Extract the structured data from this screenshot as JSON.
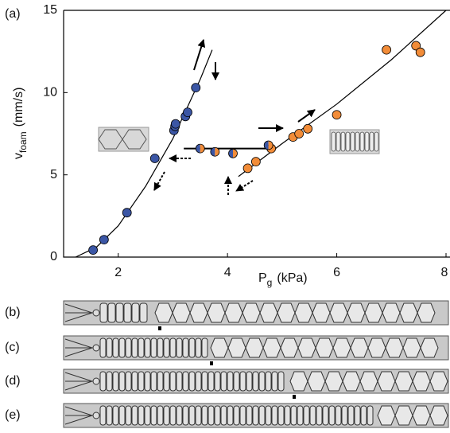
{
  "chart_data": {
    "type": "scatter",
    "panel_label": "(a)",
    "x_label": {
      "main": "P",
      "sub": "g",
      "unit": "(kPa)"
    },
    "y_label": {
      "main": "v",
      "sub": "foam",
      "unit": "(mm/s)"
    },
    "xlim": [
      1,
      8
    ],
    "ylim": [
      0,
      15
    ],
    "xticks": [
      2,
      4,
      6,
      8
    ],
    "yticks": [
      0,
      5,
      10,
      15
    ],
    "series": [
      {
        "color": "#3b56a5",
        "x": [
          1.54,
          1.74,
          2.16,
          2.67,
          3.02,
          3.04,
          3.05,
          3.23,
          3.27,
          3.42
        ],
        "values": [
          0.43,
          1.06,
          2.7,
          6.0,
          7.7,
          7.95,
          8.1,
          8.55,
          8.8,
          10.3
        ]
      },
      {
        "color": "#f28c38",
        "x": [
          4.37,
          4.52,
          4.8,
          5.2,
          5.31,
          5.47,
          6.0,
          6.91,
          7.45,
          7.53
        ],
        "values": [
          5.4,
          5.8,
          6.6,
          7.3,
          7.5,
          7.8,
          8.65,
          12.6,
          12.85,
          12.45
        ]
      },
      {
        "colors": [
          "#3b56a5",
          "#f28c38"
        ],
        "x": [
          3.5,
          3.77,
          4.1,
          4.75
        ],
        "values": [
          6.6,
          6.4,
          6.3,
          6.8
        ]
      }
    ],
    "lines": [
      {
        "color": "#000000",
        "x": [
          1.22,
          1.6,
          2.0,
          2.5,
          3.0,
          3.5,
          3.72
        ],
        "values": [
          0,
          0.6,
          1.9,
          4.3,
          7.2,
          10.8,
          12.6
        ]
      },
      {
        "color": "#000000",
        "x": [
          4.2,
          5.0,
          6.0,
          7.0,
          8.0
        ],
        "values": [
          4.9,
          6.9,
          9.3,
          12.0,
          15.0
        ]
      },
      {
        "color": "#000000",
        "x": [
          3.2,
          4.8
        ],
        "values": [
          6.6,
          6.6
        ]
      }
    ]
  },
  "panels": [
    {
      "label": "(b)"
    },
    {
      "label": "(c)"
    },
    {
      "label": "(d)"
    },
    {
      "label": "(e)"
    }
  ]
}
